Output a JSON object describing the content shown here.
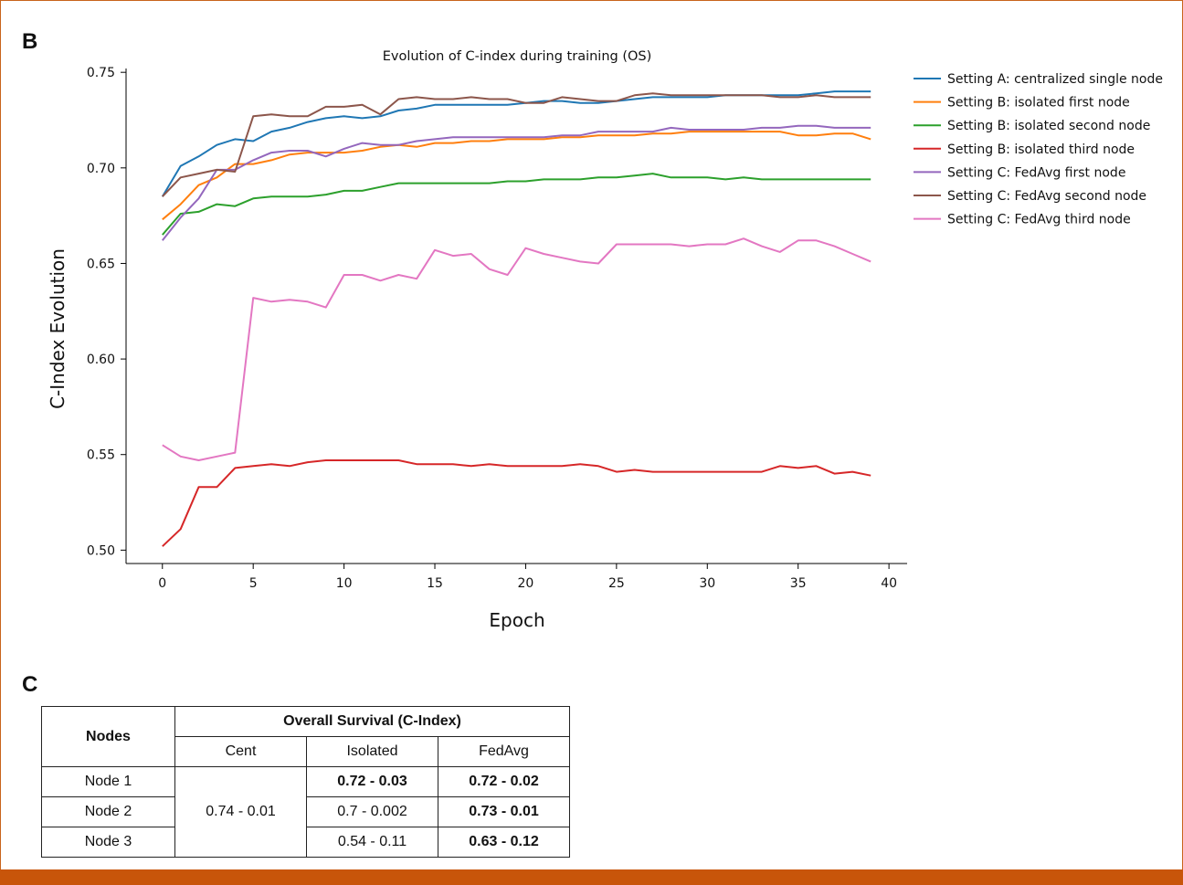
{
  "panel_b_label": "B",
  "panel_c_label": "C",
  "colors": {
    "frame": "#c8641c",
    "bar": "#c8550a"
  },
  "chart_data": {
    "type": "line",
    "title": "Evolution of C-index during training (OS)",
    "xlabel": "Epoch",
    "ylabel": "C-Index Evolution",
    "xlim": [
      -2,
      41
    ],
    "ylim": [
      0.493,
      0.752
    ],
    "xticks": [
      0,
      5,
      10,
      15,
      20,
      25,
      30,
      35,
      40
    ],
    "yticks": [
      0.5,
      0.55,
      0.6,
      0.65,
      0.7,
      0.75
    ],
    "ytick_labels": [
      "0.50",
      "0.55",
      "0.60",
      "0.65",
      "0.70",
      "0.75"
    ],
    "grid": false,
    "legend": "outside-right",
    "x": [
      0,
      1,
      2,
      3,
      4,
      5,
      6,
      7,
      8,
      9,
      10,
      11,
      12,
      13,
      14,
      15,
      16,
      17,
      18,
      19,
      20,
      21,
      22,
      23,
      24,
      25,
      26,
      27,
      28,
      29,
      30,
      31,
      32,
      33,
      34,
      35,
      36,
      37,
      38,
      39
    ],
    "series": [
      {
        "name": "Setting A: centralized single node",
        "color": "#1f77b4",
        "values": [
          0.685,
          0.701,
          0.706,
          0.712,
          0.715,
          0.714,
          0.719,
          0.721,
          0.724,
          0.726,
          0.727,
          0.726,
          0.727,
          0.73,
          0.731,
          0.733,
          0.733,
          0.733,
          0.733,
          0.733,
          0.734,
          0.735,
          0.735,
          0.734,
          0.734,
          0.735,
          0.736,
          0.737,
          0.737,
          0.737,
          0.737,
          0.738,
          0.738,
          0.738,
          0.738,
          0.738,
          0.739,
          0.74,
          0.74,
          0.74
        ]
      },
      {
        "name": "Setting B: isolated first node",
        "color": "#ff7f0e",
        "values": [
          0.673,
          0.681,
          0.691,
          0.695,
          0.702,
          0.702,
          0.704,
          0.707,
          0.708,
          0.708,
          0.708,
          0.709,
          0.711,
          0.712,
          0.711,
          0.713,
          0.713,
          0.714,
          0.714,
          0.715,
          0.715,
          0.715,
          0.716,
          0.716,
          0.717,
          0.717,
          0.717,
          0.718,
          0.718,
          0.719,
          0.719,
          0.719,
          0.719,
          0.719,
          0.719,
          0.717,
          0.717,
          0.718,
          0.718,
          0.715
        ]
      },
      {
        "name": "Setting B: isolated second node",
        "color": "#2ca02c",
        "values": [
          0.665,
          0.676,
          0.677,
          0.681,
          0.68,
          0.684,
          0.685,
          0.685,
          0.685,
          0.686,
          0.688,
          0.688,
          0.69,
          0.692,
          0.692,
          0.692,
          0.692,
          0.692,
          0.692,
          0.693,
          0.693,
          0.694,
          0.694,
          0.694,
          0.695,
          0.695,
          0.696,
          0.697,
          0.695,
          0.695,
          0.695,
          0.694,
          0.695,
          0.694,
          0.694,
          0.694,
          0.694,
          0.694,
          0.694,
          0.694
        ]
      },
      {
        "name": "Setting B: isolated third node",
        "color": "#d62728",
        "values": [
          0.502,
          0.511,
          0.533,
          0.533,
          0.543,
          0.544,
          0.545,
          0.544,
          0.546,
          0.547,
          0.547,
          0.547,
          0.547,
          0.547,
          0.545,
          0.545,
          0.545,
          0.544,
          0.545,
          0.544,
          0.544,
          0.544,
          0.544,
          0.545,
          0.544,
          0.541,
          0.542,
          0.541,
          0.541,
          0.541,
          0.541,
          0.541,
          0.541,
          0.541,
          0.544,
          0.543,
          0.544,
          0.54,
          0.541,
          0.539
        ]
      },
      {
        "name": "Setting C: FedAvg first node",
        "color": "#9467bd",
        "values": [
          0.662,
          0.674,
          0.684,
          0.699,
          0.699,
          0.704,
          0.708,
          0.709,
          0.709,
          0.706,
          0.71,
          0.713,
          0.712,
          0.712,
          0.714,
          0.715,
          0.716,
          0.716,
          0.716,
          0.716,
          0.716,
          0.716,
          0.717,
          0.717,
          0.719,
          0.719,
          0.719,
          0.719,
          0.721,
          0.72,
          0.72,
          0.72,
          0.72,
          0.721,
          0.721,
          0.722,
          0.722,
          0.721,
          0.721,
          0.721
        ]
      },
      {
        "name": "Setting C: FedAvg second node",
        "color": "#8c564b",
        "values": [
          0.685,
          0.695,
          0.697,
          0.699,
          0.698,
          0.727,
          0.728,
          0.727,
          0.727,
          0.732,
          0.732,
          0.733,
          0.728,
          0.736,
          0.737,
          0.736,
          0.736,
          0.737,
          0.736,
          0.736,
          0.734,
          0.734,
          0.737,
          0.736,
          0.735,
          0.735,
          0.738,
          0.739,
          0.738,
          0.738,
          0.738,
          0.738,
          0.738,
          0.738,
          0.737,
          0.737,
          0.738,
          0.737,
          0.737,
          0.737
        ]
      },
      {
        "name": "Setting C: FedAvg third node",
        "color": "#e377c2",
        "values": [
          0.555,
          0.549,
          0.547,
          0.549,
          0.551,
          0.632,
          0.63,
          0.631,
          0.63,
          0.627,
          0.644,
          0.644,
          0.641,
          0.644,
          0.642,
          0.657,
          0.654,
          0.655,
          0.647,
          0.644,
          0.658,
          0.655,
          0.653,
          0.651,
          0.65,
          0.66,
          0.66,
          0.66,
          0.66,
          0.659,
          0.66,
          0.66,
          0.663,
          0.659,
          0.656,
          0.662,
          0.662,
          0.659,
          0.655,
          0.651
        ]
      }
    ]
  },
  "table": {
    "col_header": "Nodes",
    "group_header": "Overall Survival (C-Index)",
    "sub_headers": [
      "Cent",
      "Isolated",
      "FedAvg"
    ],
    "cent_value": "0.74 - 0.01",
    "rows": [
      {
        "node": "Node 1",
        "isolated": "0.72 - 0.03",
        "fedavg": "0.72 - 0.02"
      },
      {
        "node": "Node 2",
        "isolated": "0.7 - 0.002",
        "fedavg": "0.73 - 0.01"
      },
      {
        "node": "Node 3",
        "isolated": "0.54 - 0.11",
        "fedavg": "0.63 - 0.12"
      }
    ]
  }
}
